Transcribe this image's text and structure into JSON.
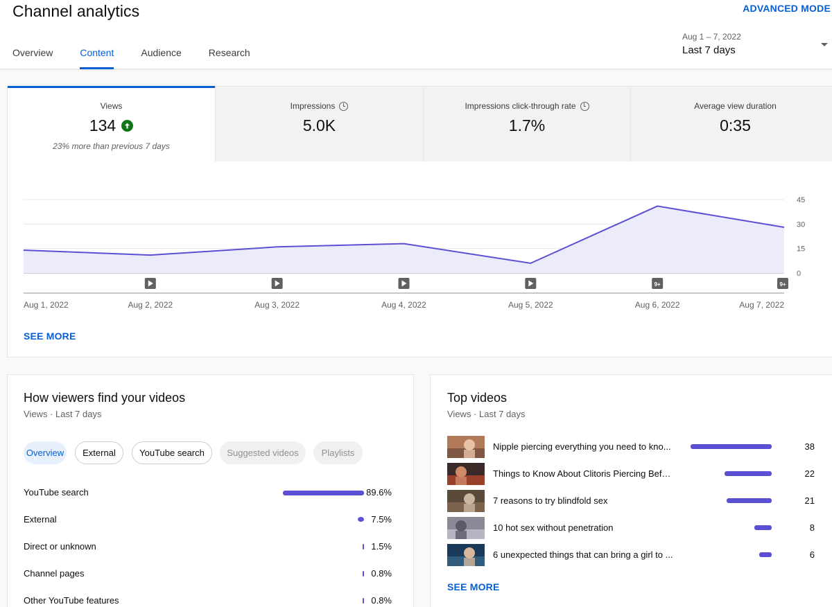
{
  "header": {
    "title": "Channel analytics",
    "advanced_mode": "ADVANCED MODE",
    "tabs": [
      {
        "label": "Overview"
      },
      {
        "label": "Content"
      },
      {
        "label": "Audience"
      },
      {
        "label": "Research"
      }
    ],
    "active_tab": "Content",
    "date_range": {
      "sub": "Aug 1 – 7, 2022",
      "main": "Last 7 days"
    }
  },
  "metrics": [
    {
      "label": "Views",
      "value": "134",
      "note": "23% more than previous 7 days",
      "trend_icon": "arrow-up-circle-icon",
      "active": true
    },
    {
      "label": "Impressions",
      "value": "5.0K",
      "info_icon": "clock-icon"
    },
    {
      "label": "Impressions click-through rate",
      "value": "1.7%",
      "info_icon": "clock-icon"
    },
    {
      "label": "Average view duration",
      "value": "0:35"
    }
  ],
  "chart_data": {
    "type": "area",
    "title": "",
    "xlabel": "",
    "ylabel": "",
    "x": [
      "Aug 1, 2022",
      "Aug 2, 2022",
      "Aug 3, 2022",
      "Aug 4, 2022",
      "Aug 5, 2022",
      "Aug 6, 2022",
      "Aug 7, 2022"
    ],
    "series": [
      {
        "values": [
          14,
          11,
          16,
          18,
          6,
          41,
          28
        ],
        "color": "#5b50d4"
      }
    ],
    "ylim": [
      0,
      45
    ],
    "yticks": [
      0,
      15,
      30,
      45
    ],
    "grid": true,
    "markers": [
      "play",
      "play",
      "play",
      "play",
      "play",
      "9+",
      "9+"
    ]
  },
  "main_see_more": "SEE MORE",
  "traffic": {
    "title": "How viewers find your videos",
    "subtitle": "Views · Last 7 days",
    "chips": [
      {
        "label": "Overview"
      },
      {
        "label": "External"
      },
      {
        "label": "YouTube search"
      },
      {
        "label": "Suggested videos"
      },
      {
        "label": "Playlists"
      }
    ],
    "rows": [
      {
        "label": "YouTube search",
        "value": "89.6%",
        "fraction": 0.896
      },
      {
        "label": "External",
        "value": "7.5%",
        "fraction": 0.075
      },
      {
        "label": "Direct or unknown",
        "value": "1.5%",
        "fraction": 0.015
      },
      {
        "label": "Channel pages",
        "value": "0.8%",
        "fraction": 0.008
      },
      {
        "label": "Other YouTube features",
        "value": "0.8%",
        "fraction": 0.008
      }
    ]
  },
  "top_videos": {
    "title": "Top videos",
    "subtitle": "Views · Last 7 days",
    "see_more": "SEE MORE",
    "rows": [
      {
        "title": "Nipple piercing everything you need to kno...",
        "views": "38",
        "count": 38
      },
      {
        "title": "Things to Know About Clitoris Piercing Befo...",
        "views": "22",
        "count": 22
      },
      {
        "title": "7 reasons to try blindfold sex",
        "views": "21",
        "count": 21
      },
      {
        "title": "10 hot sex without penetration",
        "views": "8",
        "count": 8
      },
      {
        "title": "6 unexpected things that can bring a girl to ...",
        "views": "6",
        "count": 6
      }
    ]
  },
  "colors": {
    "accent": "#065fd4",
    "bar": "#5b50d4",
    "positive": "#107516"
  }
}
